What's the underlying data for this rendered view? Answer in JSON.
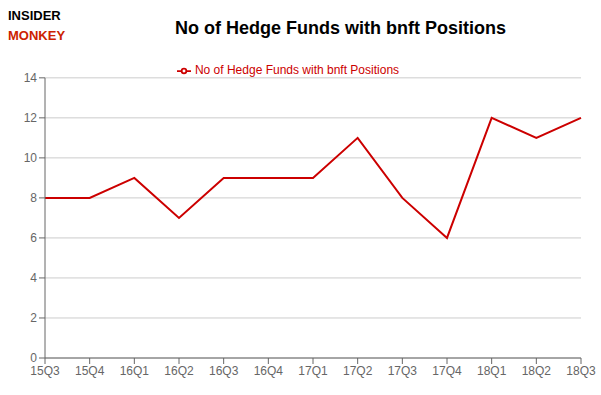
{
  "chart_data": {
    "type": "line",
    "title": "No of Hedge Funds with bnft Positions",
    "annotations": [
      "INSIDER",
      "MONKEY"
    ],
    "categories": [
      "15Q3",
      "15Q4",
      "16Q1",
      "16Q2",
      "16Q3",
      "16Q4",
      "17Q1",
      "17Q2",
      "17Q3",
      "17Q4",
      "18Q1",
      "18Q2",
      "18Q3"
    ],
    "series": [
      {
        "name": "No of Hedge Funds with bnft Positions",
        "color": "#cc0000",
        "values": [
          8,
          8,
          9,
          7,
          9,
          9,
          9,
          11,
          8,
          6,
          12,
          11,
          12
        ]
      }
    ],
    "ylim": [
      0,
      14
    ],
    "yticks": [
      0,
      2,
      4,
      6,
      8,
      10,
      12,
      14
    ],
    "grid": true,
    "legend": "top"
  }
}
